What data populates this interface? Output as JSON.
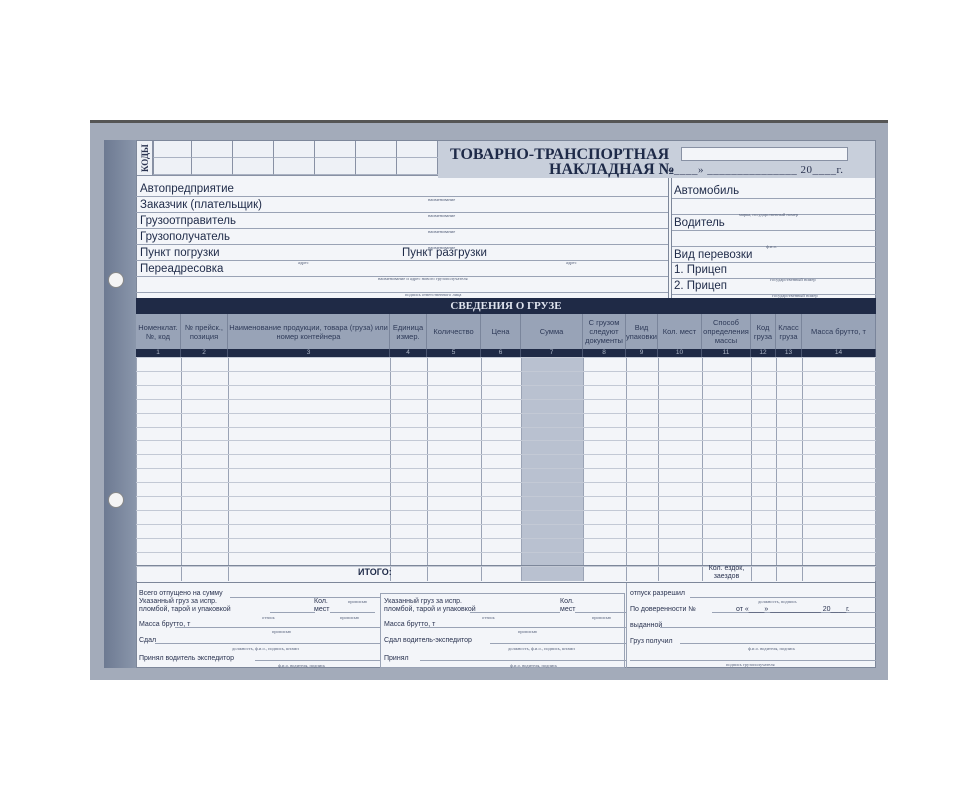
{
  "codes_label": "КОДЫ",
  "title": {
    "line1": "ТОВАРНО-ТРАНСПОРТНАЯ",
    "line2": "НАКЛАДНАЯ №",
    "date": "«____» _______________ 20____г."
  },
  "parties": {
    "autoenterprise": "Автопредприятие",
    "customer": "Заказчик (плательщик)",
    "shipper": "Грузоотправитель",
    "consignee": "Грузополучатель",
    "loading_point": "Пункт погрузки",
    "unloading_point": "Пункт разгрузки",
    "readdress": "Переадресовка",
    "cap_name": "наименование",
    "cap_address": "адрес",
    "cap_new_consignee": "наименование и адрес нового грузополучателя",
    "cap_signature": "подпись ответственного лица"
  },
  "vehicle": {
    "car": "Автомобиль",
    "cap_car": "марка, государственный номер",
    "driver": "Водитель",
    "cap_driver": "ф.и.о.",
    "transport_type": "Вид перевозки",
    "trailer1": "1. Прицеп",
    "trailer2": "2. Прицеп",
    "cap_trailer": "государственный номер"
  },
  "cargo": {
    "title": "СВЕДЕНИЯ О ГРУЗЕ",
    "columns": [
      {
        "label": "Номенклат. №, код",
        "num": "1"
      },
      {
        "label": "№ прейск., позиция",
        "num": "2"
      },
      {
        "label": "Наименование продукции, товара (груза) или номер контейнера",
        "num": "3"
      },
      {
        "label": "Единица измер.",
        "num": "4"
      },
      {
        "label": "Количество",
        "num": "5"
      },
      {
        "label": "Цена",
        "num": "6"
      },
      {
        "label": "Сумма",
        "num": "7"
      },
      {
        "label": "С грузом следуют документы",
        "num": "8"
      },
      {
        "label": "Вид упаковки",
        "num": "9"
      },
      {
        "label": "Кол. мест",
        "num": "10"
      },
      {
        "label": "Способ определения массы",
        "num": "11"
      },
      {
        "label": "Код груза",
        "num": "12"
      },
      {
        "label": "Класс груза",
        "num": "13"
      },
      {
        "label": "Масса брутто, т",
        "num": "14"
      }
    ],
    "total": "ИТОГО:",
    "trips": "Кол. ездок, заездов"
  },
  "footer": {
    "col1": {
      "released_sum": "Всего отпущено на сумму",
      "seal1": "Указанный груз за испр.",
      "seal2": "пломбой, тарой и упаковкой",
      "qty1": "Кол.",
      "qty2": "мест",
      "cap_words": "прописью",
      "cap_mark": "оттиск",
      "gross": "Масса брутто, т",
      "handed": "Сдал",
      "cap_handed": "должность, ф.и.о., подпись, штамп",
      "received_driver": "Принял водитель экспедитор",
      "cap_driver": "ф.и.о. водителя, подпись"
    },
    "col2": {
      "seal1": "Указанный груз за испр.",
      "seal2": "пломбой, тарой и упаковкой",
      "qty1": "Кол.",
      "qty2": "мест",
      "cap_words": "прописью",
      "cap_mark": "оттиск",
      "gross": "Масса брутто, т",
      "handed": "Сдал водитель-экспедитор",
      "cap_handed": "должность, ф.и.о., подпись, штамп",
      "received": "Принял",
      "cap_received": "ф.и.о. водителя, подпись"
    },
    "col3": {
      "release_allowed": "отпуск разрешил",
      "cap_release": "должность, подпись",
      "proxy": "По доверенности №",
      "proxy_date": "от «____» _____________ 20____г.",
      "issued": "выданной",
      "cargo_received": "Груз получил",
      "cap_received": "ф.и.о. водителя, подпись",
      "cap_consignee": "подпись грузополучателя"
    }
  },
  "colors": {
    "navy": "#1f2a46",
    "header_gray": "#98a3b7",
    "frame": "#a3abba",
    "paper": "#f3f5f9",
    "sum_shade": "#b9c1d0"
  }
}
